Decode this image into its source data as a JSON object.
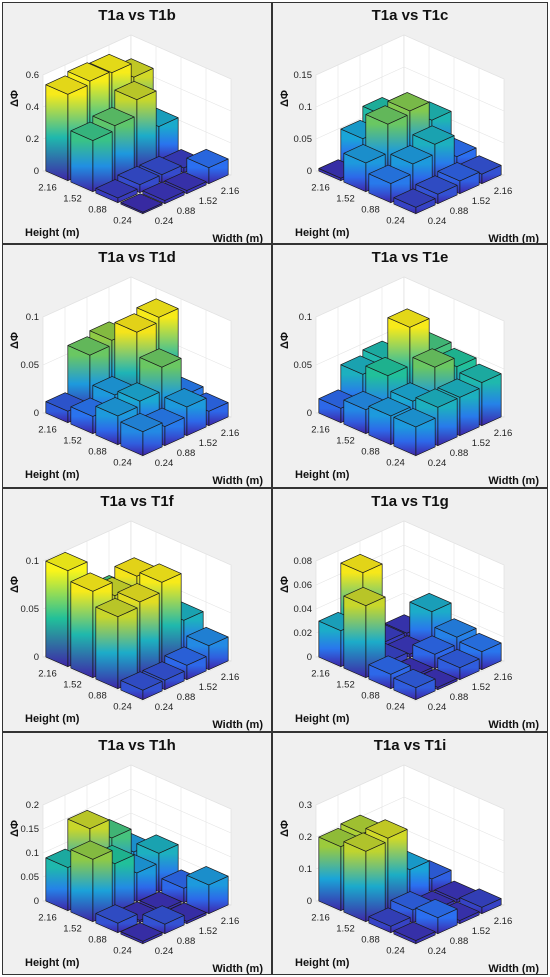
{
  "z_axis_label": "ΔΦ",
  "x_axis_label": "Width (m)",
  "y_axis_label": "Height (m)",
  "colormap": [
    "#3e26a8",
    "#2b6ff0",
    "#1aa5d8",
    "#21c09a",
    "#9bcb3c",
    "#f5e21a",
    "#f9f51a"
  ],
  "chart_data": [
    {
      "type": "bar3d",
      "title": "T1a vs T1b",
      "x_ticks": [
        "0.24",
        "0.88",
        "1.52",
        "2.16"
      ],
      "y_ticks": [
        "0.24",
        "0.88",
        "1.52",
        "2.16"
      ],
      "z_ticks": [
        "0",
        "0.2",
        "0.4",
        "0.6"
      ],
      "zlim": [
        0,
        0.6
      ],
      "values": [
        [
          0.01,
          0.02,
          0.02,
          0.1
        ],
        [
          0.03,
          0.05,
          0.05,
          0.03
        ],
        [
          0.32,
          0.35,
          0.45,
          0.22
        ],
        [
          0.54,
          0.56,
          0.55,
          0.46
        ]
      ]
    },
    {
      "type": "bar3d",
      "title": "T1a vs T1c",
      "x_ticks": [
        "0.24",
        "0.88",
        "1.52",
        "2.16"
      ],
      "y_ticks": [
        "0.24",
        "0.88",
        "1.52",
        "2.16"
      ],
      "z_ticks": [
        "0",
        "0.05",
        "0.1",
        "0.15"
      ],
      "zlim": [
        0,
        0.15
      ],
      "values": [
        [
          0.01,
          0.015,
          0.02,
          0.015
        ],
        [
          0.03,
          0.045,
          0.06,
          0.025
        ],
        [
          0.045,
          0.09,
          0.095,
          0.065
        ],
        [
          0.004,
          0.05,
          0.07,
          0.06
        ]
      ]
    },
    {
      "type": "bar3d",
      "title": "T1a vs T1d",
      "x_ticks": [
        "0.24",
        "0.88",
        "1.52",
        "2.16"
      ],
      "y_ticks": [
        "0.24",
        "0.88",
        "1.52",
        "2.16"
      ],
      "z_ticks": [
        "0",
        "0.05",
        "0.1"
      ],
      "zlim": [
        0,
        0.1
      ],
      "values": [
        [
          0.025,
          0.02,
          0.03,
          0.015
        ],
        [
          0.03,
          0.035,
          0.06,
          0.02
        ],
        [
          0.018,
          0.03,
          0.085,
          0.09
        ],
        [
          0.012,
          0.06,
          0.065,
          0.02
        ]
      ]
    },
    {
      "type": "bar3d",
      "title": "T1a vs T1e",
      "x_ticks": [
        "0.24",
        "0.88",
        "1.52",
        "2.16"
      ],
      "y_ticks": [
        "0.24",
        "0.88",
        "1.52",
        "2.16"
      ],
      "z_ticks": [
        "0",
        "0.05",
        "0.1"
      ],
      "zlim": [
        0,
        0.1
      ],
      "values": [
        [
          0.03,
          0.04,
          0.04,
          0.045
        ],
        [
          0.03,
          0.035,
          0.06,
          0.05
        ],
        [
          0.025,
          0.05,
          0.09,
          0.055
        ],
        [
          0.015,
          0.04,
          0.045,
          0.03
        ]
      ]
    },
    {
      "type": "bar3d",
      "title": "T1a vs T1f",
      "x_ticks": [
        "0.24",
        "0.88",
        "1.52",
        "2.16"
      ],
      "y_ticks": [
        "0.24",
        "0.88",
        "1.52",
        "2.16"
      ],
      "z_ticks": [
        "0",
        "0.05",
        "0.1"
      ],
      "zlim": [
        0,
        0.1
      ],
      "values": [
        [
          0.01,
          0.01,
          0.015,
          0.025
        ],
        [
          0.075,
          0.08,
          0.09,
          0.04
        ],
        [
          0.09,
          0.075,
          0.085,
          0.05
        ],
        [
          0.1,
          0.06,
          0.055,
          0.05
        ]
      ]
    },
    {
      "type": "bar3d",
      "title": "T1a vs T1g",
      "x_ticks": [
        "0.24",
        "0.88",
        "1.52",
        "2.16"
      ],
      "y_ticks": [
        "0.24",
        "0.88",
        "1.52",
        "2.16"
      ],
      "z_ticks": [
        "0",
        "0.02",
        "0.04",
        "0.06",
        "0.08"
      ],
      "zlim": [
        0,
        0.08
      ],
      "values": [
        [
          0.01,
          0.002,
          0.01,
          0.015
        ],
        [
          0.012,
          0.002,
          0.012,
          0.018
        ],
        [
          0.06,
          0.005,
          0.003,
          0.03
        ],
        [
          0.03,
          0.07,
          0.004,
          0.003
        ]
      ]
    },
    {
      "type": "bar3d",
      "title": "T1a vs T1h",
      "x_ticks": [
        "0.24",
        "0.88",
        "1.52",
        "2.16"
      ],
      "y_ticks": [
        "0.24",
        "0.88",
        "1.52",
        "2.16"
      ],
      "z_ticks": [
        "0",
        "0.05",
        "0.1",
        "0.15",
        "0.2"
      ],
      "zlim": [
        0,
        0.2
      ],
      "values": [
        [
          0.005,
          0.02,
          0.005,
          0.06
        ],
        [
          0.02,
          0.005,
          0.005,
          0.03
        ],
        [
          0.13,
          0.1,
          0.06,
          0.08
        ],
        [
          0.09,
          0.15,
          0.11,
          0.06
        ]
      ]
    },
    {
      "type": "bar3d",
      "title": "T1a vs T1i",
      "x_ticks": [
        "0.24",
        "0.88",
        "1.52",
        "2.16"
      ],
      "y_ticks": [
        "0.24",
        "0.88",
        "1.52",
        "2.16"
      ],
      "z_ticks": [
        "0",
        "0.1",
        "0.2",
        "0.3"
      ],
      "zlim": [
        0,
        0.3
      ],
      "values": [
        [
          0.01,
          0.05,
          0.01,
          0.02
        ],
        [
          0.02,
          0.04,
          0.01,
          0.01
        ],
        [
          0.22,
          0.23,
          0.1,
          0.04
        ],
        [
          0.2,
          0.21,
          0.05,
          0.02
        ]
      ]
    }
  ]
}
